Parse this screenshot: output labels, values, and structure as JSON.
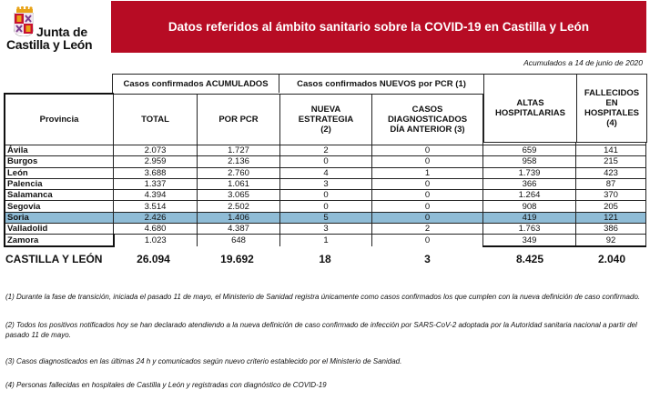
{
  "logo": {
    "line1": "Junta de",
    "line2": "Castilla y León",
    "colors": {
      "red": "#c8102e",
      "gold": "#e8a317",
      "purple": "#7a3d8c"
    }
  },
  "header": {
    "title": "Datos referidos al ámbito sanitario sobre la COVID-19 en Castilla y León",
    "banner_color": "#b70c24"
  },
  "date_note": "Acumulados a 14 de junio de 2020",
  "table": {
    "group_headers": {
      "acumulados": "Casos confirmados ACUMULADOS",
      "nuevos": "Casos confirmados NUEVOS por PCR (1)"
    },
    "columns": {
      "provincia": "Provincia",
      "total": "TOTAL",
      "por_pcr": "POR PCR",
      "nueva_estrategia": "NUEVA ESTRATEGIA (2)",
      "casos_dia_anterior": "CASOS DIAGNOSTICADOS DÍA ANTERIOR (3)",
      "altas": "ALTAS HOSPITALARIAS",
      "fallecidos": "FALLECIDOS EN HOSPITALES (4)"
    },
    "rows": [
      {
        "provincia": "Ávila",
        "total": "2.073",
        "por_pcr": "1.727",
        "nueva": "2",
        "anterior": "0",
        "altas": "659",
        "fallecidos": "141"
      },
      {
        "provincia": "Burgos",
        "total": "2.959",
        "por_pcr": "2.136",
        "nueva": "0",
        "anterior": "0",
        "altas": "958",
        "fallecidos": "215"
      },
      {
        "provincia": "León",
        "total": "3.688",
        "por_pcr": "2.760",
        "nueva": "4",
        "anterior": "1",
        "altas": "1.739",
        "fallecidos": "423"
      },
      {
        "provincia": "Palencia",
        "total": "1.337",
        "por_pcr": "1.061",
        "nueva": "3",
        "anterior": "0",
        "altas": "366",
        "fallecidos": "87"
      },
      {
        "provincia": "Salamanca",
        "total": "4.394",
        "por_pcr": "3.065",
        "nueva": "0",
        "anterior": "0",
        "altas": "1.264",
        "fallecidos": "370"
      },
      {
        "provincia": "Segovia",
        "total": "3.514",
        "por_pcr": "2.502",
        "nueva": "0",
        "anterior": "0",
        "altas": "908",
        "fallecidos": "205"
      },
      {
        "provincia": "Soria",
        "total": "2.426",
        "por_pcr": "1.406",
        "nueva": "5",
        "anterior": "0",
        "altas": "419",
        "fallecidos": "121",
        "highlight": true
      },
      {
        "provincia": "Valladolid",
        "total": "4.680",
        "por_pcr": "4.387",
        "nueva": "3",
        "anterior": "2",
        "altas": "1.763",
        "fallecidos": "386"
      },
      {
        "provincia": "Zamora",
        "total": "1.023",
        "por_pcr": "648",
        "nueva": "1",
        "anterior": "0",
        "altas": "349",
        "fallecidos": "92"
      }
    ],
    "totals": {
      "label": "CASTILLA Y LEÓN",
      "total": "26.094",
      "por_pcr": "19.692",
      "nueva": "18",
      "anterior": "3",
      "altas": "8.425",
      "fallecidos": "2.040"
    },
    "highlight_color": "#8fbcd6"
  },
  "footnotes": [
    "(1) Durante la fase de transición, iniciada el pasado 11 de mayo, el Ministerio de Sanidad registra únicamente como casos confirmados los que cumplen con la nueva definición de caso confirmado.",
    "(2) Todos los positivos notificados hoy se han declarado atendiendo a la nueva definición de caso confirmado de infección por SARS-CoV-2 adoptada por la Autoridad sanitaria nacional a partir del pasado 11 de mayo.",
    "(3) Casos diagnosticados en las últimas 24 h y comunicados según nuevo criterio establecido por el Ministerio de Sanidad.",
    "(4) Personas fallecidas en hospitales de Castilla y León y registradas con diagnóstico de COVID-19"
  ]
}
